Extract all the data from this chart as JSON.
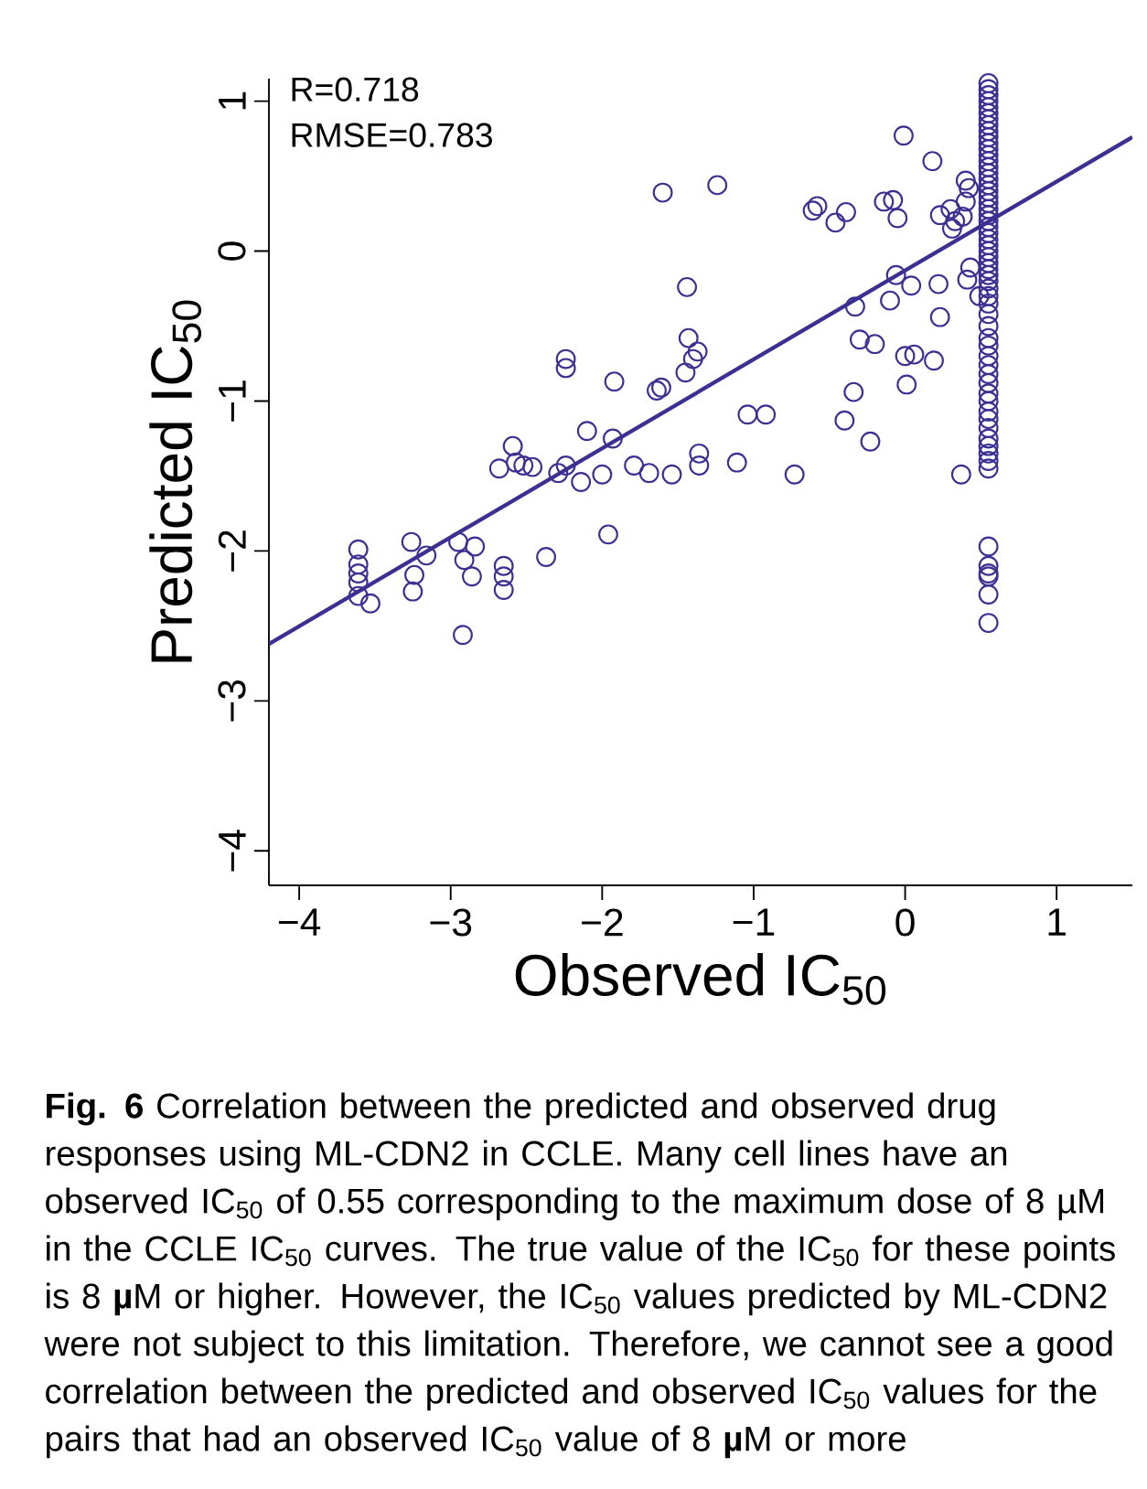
{
  "chart_data": {
    "type": "scatter",
    "xlabel": "Observed IC$_{50}$",
    "ylabel": "Predicted IC$_{50}$",
    "xlim": [
      -4.2,
      1.5
    ],
    "ylim": [
      -4.23,
      1.15
    ],
    "xticks": [
      {
        "value": -4,
        "label": "−4"
      },
      {
        "value": -3,
        "label": "−3"
      },
      {
        "value": -2,
        "label": "−2"
      },
      {
        "value": -1,
        "label": "−1"
      },
      0,
      1
    ],
    "yticks": [
      {
        "value": -4,
        "label": "−4"
      },
      {
        "value": -3,
        "label": "−3"
      },
      {
        "value": -2,
        "label": "−2"
      },
      {
        "value": -1,
        "label": "−1"
      },
      0,
      1
    ],
    "annotations": [
      "R=0.718",
      "RMSE=0.783",
      "**Fig. 6** Correlation between the predicted and observed drug responses using ML-CDN2 in CCLE. Many cell lines have an observed IC$_{50}$ of 0.55 corresponding to the maximum dose of 8 µM in the CCLE IC$_{50}$ curves. The true value of the IC$_{50}$ for these points is 8 **µ**M or higher. However, the IC$_{50}$ values predicted by ML-CDN2 were not subject to this limitation. Therefore, we cannot see a good correlation between the predicted and observed IC$_{50}$ values for the pairs that had an observed IC$_{50}$ value of 8 **µ**M or more"
    ],
    "series": [
      {
        "marker": "circle",
        "color": "#3b3092",
        "x": [
          -3.61,
          -3.61,
          -3.61,
          -3.61,
          -3.61,
          -3.53,
          -3.26,
          -3.16,
          -3.24,
          -3.25,
          -2.92,
          -2.95,
          -2.84,
          -2.91,
          -2.86,
          -2.65,
          -2.65,
          -2.65,
          -2.37,
          -2.68,
          -2.59,
          -2.57,
          -2.52,
          -2.46,
          -2.29,
          -2.24,
          -2.14,
          -2.0,
          -2.1,
          -1.93,
          -1.96,
          -2.24,
          -2.24,
          -1.92,
          -1.6,
          -1.24,
          -1.44,
          -1.43,
          -1.4,
          -1.37,
          -1.45,
          -1.64,
          -1.61,
          -1.79,
          -1.69,
          -1.54,
          -1.36,
          -1.36,
          -1.11,
          -0.73,
          -1.04,
          -0.92,
          -0.4,
          -0.23,
          -0.34,
          -0.3,
          -0.2,
          -0.33,
          -0.1,
          -0.06,
          0.04,
          0.0,
          0.06,
          0.01,
          0.19,
          0.23,
          0.22,
          0.41,
          0.43,
          -0.61,
          -0.58,
          -0.46,
          -0.39,
          -0.14,
          -0.08,
          -0.05,
          -0.01,
          0.18,
          0.23,
          0.3,
          0.33,
          0.31,
          0.4,
          0.42,
          0.4,
          0.38,
          0.37,
          0.49,
          0.55,
          0.55,
          0.55,
          0.55,
          0.55,
          0.55,
          0.55,
          0.55,
          0.55,
          0.55,
          0.55,
          0.55,
          0.55,
          0.55,
          0.55,
          0.55,
          0.55,
          0.55,
          0.55,
          0.55,
          0.55,
          0.55,
          0.55,
          0.55,
          0.55,
          0.55,
          0.55,
          0.55,
          0.55,
          0.55,
          0.55,
          0.55,
          0.55,
          0.55,
          0.55,
          0.55,
          0.55,
          0.55,
          0.55,
          0.55,
          0.55,
          0.55,
          0.55,
          0.55,
          0.55,
          0.55,
          0.55,
          0.55,
          0.55,
          0.55,
          0.55,
          0.55,
          0.55,
          0.55,
          0.55,
          0.55,
          0.55,
          0.55,
          0.55,
          0.55,
          0.55
        ],
        "values": [
          -1.99,
          -2.09,
          -2.15,
          -2.21,
          -2.3,
          -2.35,
          -1.94,
          -2.03,
          -2.16,
          -2.27,
          -2.56,
          -1.94,
          -1.97,
          -2.06,
          -2.17,
          -2.1,
          -2.17,
          -2.26,
          -2.04,
          -1.45,
          -1.3,
          -1.41,
          -1.43,
          -1.44,
          -1.48,
          -1.43,
          -1.54,
          -1.49,
          -1.2,
          -1.25,
          -1.89,
          -0.72,
          -0.78,
          -0.87,
          0.39,
          0.44,
          -0.24,
          -0.58,
          -0.72,
          -0.67,
          -0.81,
          -0.93,
          -0.91,
          -1.43,
          -1.48,
          -1.49,
          -1.35,
          -1.43,
          -1.41,
          -1.49,
          -1.09,
          -1.09,
          -1.13,
          -1.27,
          -0.94,
          -0.59,
          -0.62,
          -0.37,
          -0.33,
          -0.16,
          -0.23,
          -0.7,
          -0.69,
          -0.89,
          -0.73,
          -0.44,
          -0.22,
          -0.19,
          -0.11,
          0.27,
          0.3,
          0.19,
          0.26,
          0.33,
          0.34,
          0.22,
          0.77,
          0.6,
          0.24,
          0.28,
          0.2,
          0.15,
          0.47,
          0.42,
          0.33,
          0.23,
          -1.49,
          -0.3,
          1.12,
          1.08,
          1.04,
          1.0,
          0.96,
          0.92,
          0.88,
          0.84,
          0.8,
          0.76,
          0.72,
          0.68,
          0.64,
          0.6,
          0.56,
          0.52,
          0.48,
          0.44,
          0.4,
          0.36,
          0.32,
          0.28,
          0.24,
          0.2,
          0.16,
          0.12,
          0.08,
          0.04,
          0.0,
          -0.04,
          -0.08,
          -0.12,
          -0.16,
          -0.2,
          -0.25,
          -0.3,
          -0.35,
          -0.42,
          -0.5,
          -0.58,
          -0.63,
          -0.7,
          -0.76,
          -0.82,
          -0.88,
          -0.95,
          -1.0,
          -1.07,
          -1.12,
          -1.18,
          -1.25,
          -1.3,
          -1.35,
          -1.4,
          -1.45,
          -1.97,
          -2.1,
          -2.15,
          -2.17,
          -2.29,
          -2.48
        ]
      },
      {
        "type": "line",
        "color": "#3b3092",
        "x": [
          -4.2,
          1.5
        ],
        "values": [
          -2.62,
          0.76
        ]
      }
    ]
  }
}
